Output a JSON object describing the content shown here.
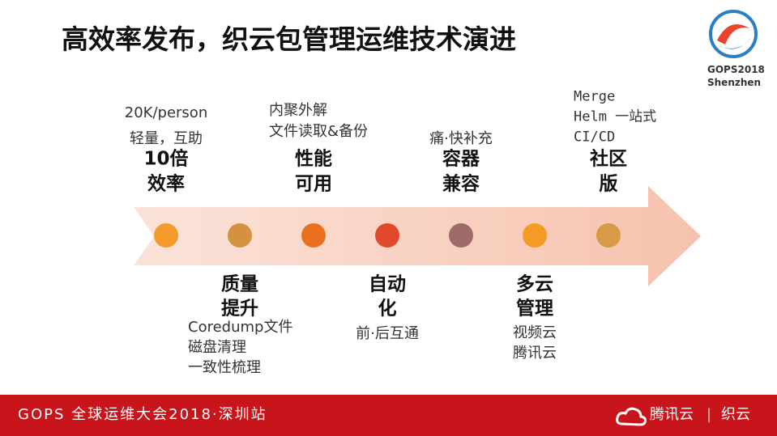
{
  "header": {
    "title": "高效率发布，织云包管理运维技术演进"
  },
  "logo": {
    "brand": "GOPS2018",
    "city": "Shenzhen"
  },
  "milestones": [
    {
      "heading": [
        "10倍",
        "效率"
      ],
      "notes": [
        "20K/person",
        "轻量，互助"
      ],
      "color": "#f39a2a"
    },
    {
      "heading": [
        "质量",
        "提升"
      ],
      "notes": [
        "Coredump文件",
        "磁盘清理",
        "一致性梳理"
      ],
      "color": "#d4913f"
    },
    {
      "heading": [
        "性能",
        "可用"
      ],
      "notes": [
        "内聚外解",
        "文件读取&备份"
      ],
      "color": "#e8701f"
    },
    {
      "heading": [
        "自动",
        "化"
      ],
      "notes": [
        "前·后互通"
      ],
      "color": "#e2482a"
    },
    {
      "heading": [
        "容器",
        "兼容"
      ],
      "notes": [
        "痛·快补充"
      ],
      "color": "#9e6a6a"
    },
    {
      "heading": [
        "多云",
        "管理"
      ],
      "notes": [
        "视频云",
        "腾讯云"
      ],
      "color": "#f59a25"
    },
    {
      "heading": [
        "社区",
        "版"
      ],
      "notes": [
        "Merge",
        "Helm 一站式",
        "CI/CD"
      ],
      "color": "#d99a45"
    }
  ],
  "footer": {
    "event": "GOPS 全球运维大会2018·深圳站",
    "sponsor1": "腾讯云",
    "separator": "|",
    "sponsor2": "织云"
  }
}
